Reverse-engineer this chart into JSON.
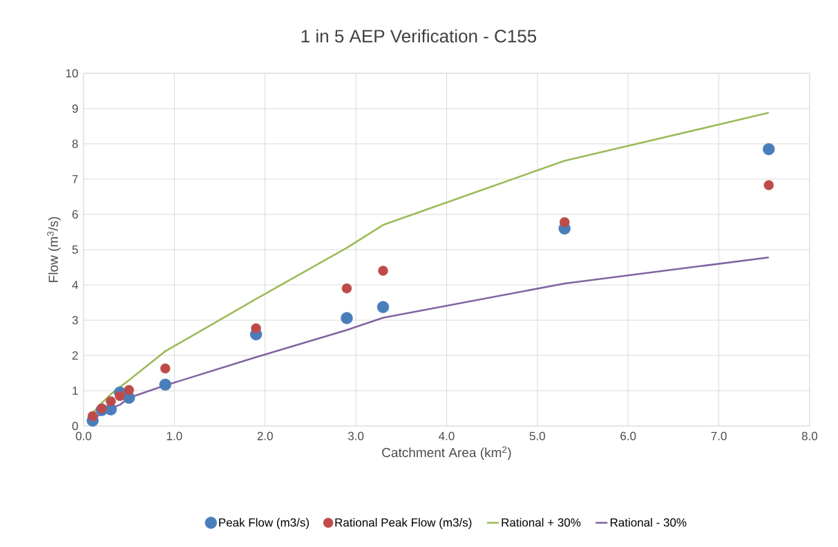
{
  "chart_data": {
    "type": "scatter",
    "title": "1 in 5 AEP Verification - C155",
    "xlabel": "Catchment Area (km$^{2}$)",
    "ylabel": "Flow (m$^{3}$/s)",
    "x": [
      0.1,
      0.2,
      0.3,
      0.4,
      0.5,
      0.9,
      1.9,
      2.9,
      3.3,
      5.3,
      7.55
    ],
    "series": [
      {
        "name": "Peak Flow (m3/s)",
        "color": "#4a7ebb",
        "values": [
          0.15,
          0.45,
          0.47,
          0.95,
          0.8,
          1.17,
          2.6,
          3.06,
          3.37,
          5.6,
          7.85
        ]
      },
      {
        "name": "Rational Peak Flow (m3/s)",
        "color": "#be4b48",
        "values": [
          0.28,
          0.5,
          0.7,
          0.85,
          1.02,
          1.63,
          2.77,
          3.9,
          4.4,
          5.78,
          6.83
        ]
      },
      {
        "name": "Rational + 30%",
        "type": "line",
        "marker": "none",
        "color": "#9bbb59",
        "values": [
          0.36,
          0.65,
          0.9,
          1.1,
          1.3,
          2.12,
          3.6,
          5.05,
          5.7,
          7.52,
          8.88
        ]
      },
      {
        "name": "Rational - 30%",
        "type": "line",
        "marker": "none",
        "color": "#8064a2",
        "values": [
          0.2,
          0.35,
          0.5,
          0.6,
          0.8,
          1.15,
          1.95,
          2.72,
          3.07,
          4.04,
          4.78
        ]
      }
    ],
    "xlim": [
      0,
      8
    ],
    "xticks": [
      {
        "value": 0,
        "label": "0.0"
      },
      {
        "value": 1,
        "label": "1.0"
      },
      {
        "value": 2,
        "label": "2.0"
      },
      {
        "value": 3,
        "label": "3.0"
      },
      {
        "value": 4,
        "label": "4.0"
      },
      {
        "value": 5,
        "label": "5.0"
      },
      {
        "value": 6,
        "label": "6.0"
      },
      {
        "value": 7,
        "label": "7.0"
      },
      {
        "value": 8,
        "label": "8.0"
      }
    ],
    "ylim": [
      0,
      10
    ],
    "yticks": [
      0,
      1,
      2,
      3,
      4,
      5,
      6,
      7,
      8,
      9,
      10
    ],
    "grid": true,
    "legend": "bottom",
    "marker": "circle",
    "line_style": "solid"
  }
}
